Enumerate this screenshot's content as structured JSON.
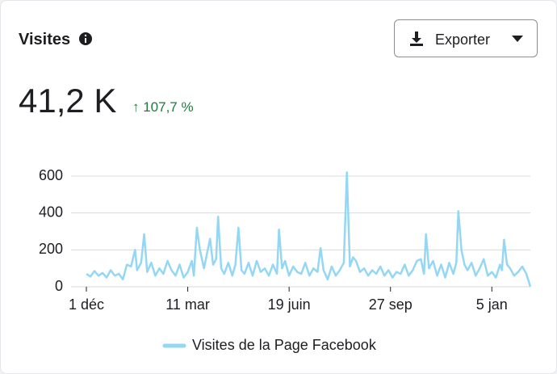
{
  "header": {
    "title": "Visites",
    "button": "Exporter",
    "total": "41,2 K",
    "change": "↑ 107,7 %"
  },
  "chart_data": {
    "type": "line",
    "x": [
      0,
      4,
      8,
      12,
      16,
      20,
      24,
      28,
      32,
      36,
      40,
      44,
      48,
      50,
      54,
      57,
      60,
      64,
      68,
      72,
      76,
      80,
      84,
      88,
      92,
      96,
      100,
      104,
      106,
      109,
      112,
      116,
      119,
      122,
      125,
      128,
      130,
      133,
      136,
      140,
      144,
      147,
      150,
      153,
      156,
      160,
      164,
      168,
      172,
      176,
      180,
      184,
      188,
      190,
      193,
      196,
      200,
      204,
      208,
      212,
      216,
      220,
      224,
      228,
      231,
      234,
      238,
      242,
      246,
      250,
      254,
      257,
      260,
      263,
      266,
      270,
      274,
      278,
      282,
      286,
      290,
      294,
      298,
      302,
      306,
      310,
      314,
      318,
      322,
      326,
      330,
      333,
      335,
      338,
      342,
      346,
      350,
      354,
      358,
      362,
      365,
      367,
      370,
      373,
      376,
      380,
      384,
      388,
      392,
      396,
      400,
      404,
      408,
      410,
      412,
      415,
      418,
      422,
      426,
      430,
      434,
      438
    ],
    "series": [
      {
        "name": "Visites de la Page Facebook",
        "color": "#93d7f5",
        "values": [
          70,
          55,
          85,
          60,
          75,
          50,
          90,
          60,
          70,
          40,
          120,
          110,
          200,
          90,
          130,
          285,
          80,
          130,
          60,
          100,
          70,
          140,
          90,
          60,
          120,
          50,
          80,
          140,
          60,
          320,
          200,
          100,
          180,
          260,
          120,
          150,
          380,
          100,
          70,
          130,
          60,
          120,
          320,
          90,
          70,
          130,
          60,
          140,
          80,
          100,
          60,
          120,
          70,
          310,
          100,
          140,
          60,
          110,
          80,
          70,
          130,
          60,
          100,
          80,
          210,
          90,
          40,
          110,
          60,
          90,
          130,
          620,
          110,
          160,
          140,
          80,
          100,
          60,
          90,
          70,
          110,
          60,
          90,
          50,
          80,
          70,
          120,
          60,
          90,
          140,
          150,
          70,
          285,
          100,
          140,
          60,
          120,
          50,
          130,
          70,
          130,
          410,
          200,
          120,
          90,
          130,
          60,
          100,
          150,
          60,
          80,
          50,
          120,
          90,
          255,
          120,
          100,
          60,
          80,
          110,
          70,
          0
        ]
      }
    ],
    "xlim": [
      0,
      438
    ],
    "xticks": [
      {
        "value": 0,
        "label": "1 déc"
      },
      {
        "value": 100,
        "label": "11 mar"
      },
      {
        "value": 200,
        "label": "19 juin"
      },
      {
        "value": 300,
        "label": "27 sep"
      },
      {
        "value": 400,
        "label": "5 jan"
      }
    ],
    "ylim": [
      0,
      650
    ],
    "yticks": [
      0,
      200,
      400,
      600
    ],
    "grid": true
  }
}
